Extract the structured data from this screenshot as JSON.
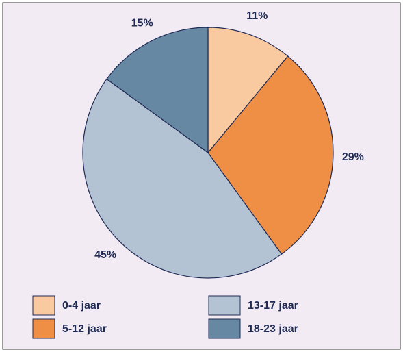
{
  "chart_data": {
    "type": "pie",
    "categories": [
      "0-4 jaar",
      "5-12 jaar",
      "13-17 jaar",
      "18-23 jaar"
    ],
    "values": [
      11,
      29,
      45,
      15
    ],
    "value_labels": [
      "11%",
      "29%",
      "45%",
      "15%"
    ],
    "colors": [
      "#f9c9a0",
      "#ef8f45",
      "#b3c3d3",
      "#6688a3"
    ],
    "legend": "bottom"
  }
}
